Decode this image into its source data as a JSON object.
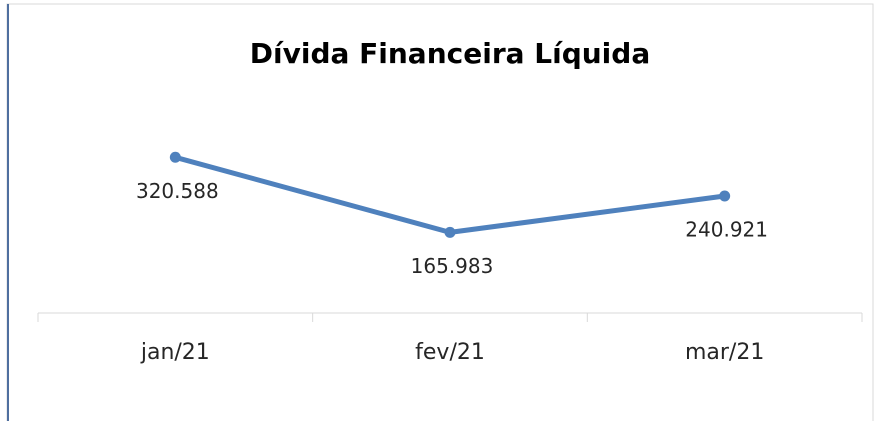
{
  "chart_data": {
    "type": "line",
    "title": "Dívida Financeira Líquida",
    "categories": [
      "jan/21",
      "fev/21",
      "mar/21"
    ],
    "series": [
      {
        "name": "Dívida Financeira Líquida",
        "color": "#4f81bd",
        "values": [
          320588,
          165983,
          240921
        ],
        "value_labels": [
          "320.588",
          "165.983",
          "240.921"
        ]
      }
    ],
    "ylim": [
      0,
      350000
    ]
  }
}
